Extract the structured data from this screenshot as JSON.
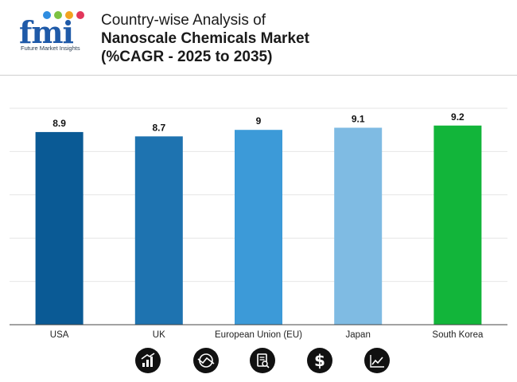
{
  "header": {
    "logo_text": "fmi",
    "logo_subtitle": "Future Market Insights",
    "title_line1": "Country-wise Analysis of",
    "title_line2": "Nanoscale Chemicals Market",
    "title_line3": "(%CAGR - 2025 to 2035)"
  },
  "chart_data": {
    "type": "bar",
    "title": "",
    "xlabel": "",
    "ylabel": "",
    "categories": [
      "USA",
      "UK",
      "European Union (EU)",
      "Japan",
      "South Korea"
    ],
    "values": [
      8.9,
      8.7,
      9,
      9.1,
      9.2
    ],
    "value_labels": [
      "8.9",
      "8.7",
      "9",
      "9.1",
      "9.2"
    ],
    "bar_colors": [
      "#0a5a95",
      "#1e73b0",
      "#3c9ad8",
      "#7fbbe3",
      "#12b53a"
    ],
    "ylim": [
      0,
      10
    ],
    "grid": true,
    "legend": "none"
  },
  "footer_icons": [
    "bar-chart-icon",
    "globe-trend-icon",
    "document-search-icon",
    "dollar-icon",
    "line-chart-icon"
  ],
  "colors": {
    "logo_blue": "#1f5aa8",
    "grid": "#e6e6e6",
    "axis": "#444444",
    "icon_bg": "#111111"
  }
}
